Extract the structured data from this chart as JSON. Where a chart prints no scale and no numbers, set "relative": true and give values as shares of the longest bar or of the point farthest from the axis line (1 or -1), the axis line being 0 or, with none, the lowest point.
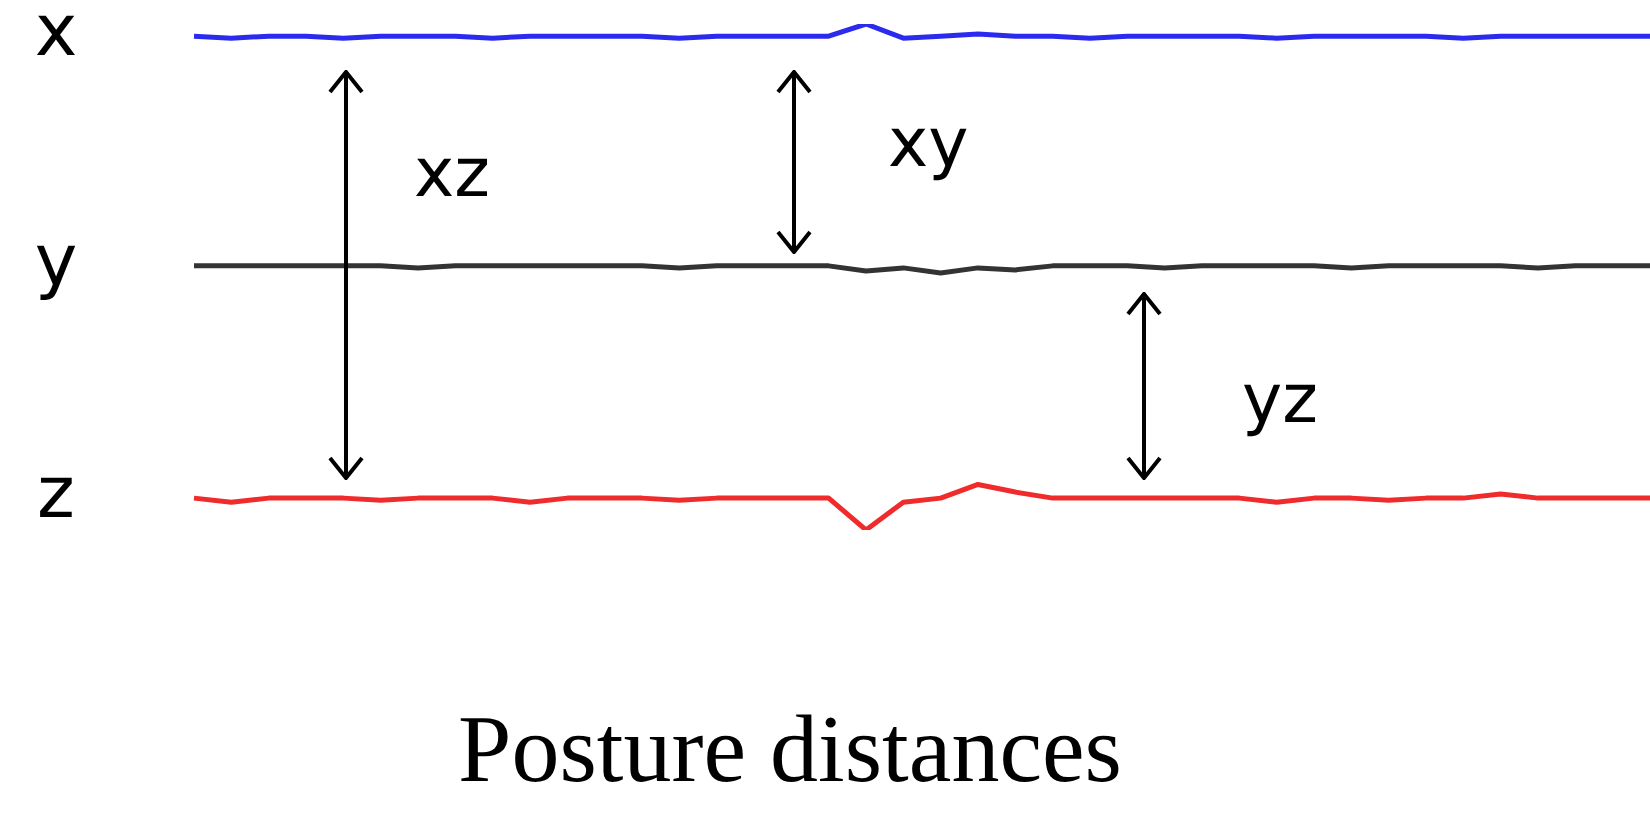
{
  "chart_data": {
    "type": "line",
    "title": "Posture distances",
    "relative": true,
    "legend": false,
    "marker": "none",
    "line_style": "solid",
    "categories": [
      null,
      null,
      null,
      null,
      null,
      null,
      null,
      null,
      null,
      null,
      null,
      null,
      null,
      null,
      null,
      null,
      null,
      null,
      null,
      null,
      null,
      null,
      null,
      null,
      null,
      null,
      null,
      null,
      null,
      null,
      null,
      null,
      null,
      null,
      null,
      null,
      null,
      null,
      null,
      null
    ],
    "series": [
      {
        "name": "x",
        "color": "#2b2bf0",
        "values": [
          0.976,
          0.972,
          0.976,
          0.976,
          0.972,
          0.976,
          0.976,
          0.976,
          0.972,
          0.976,
          0.976,
          0.976,
          0.976,
          0.972,
          0.976,
          0.976,
          0.976,
          0.976,
          1.0,
          0.972,
          0.976,
          0.98,
          0.976,
          0.976,
          0.972,
          0.976,
          0.976,
          0.976,
          0.976,
          0.972,
          0.976,
          0.976,
          0.976,
          0.976,
          0.972,
          0.976,
          0.976,
          0.976,
          0.976,
          0.976
        ]
      },
      {
        "name": "y",
        "color": "#333333",
        "values": [
          0.522,
          0.522,
          0.522,
          0.522,
          0.522,
          0.522,
          0.518,
          0.522,
          0.522,
          0.522,
          0.522,
          0.522,
          0.522,
          0.518,
          0.522,
          0.522,
          0.522,
          0.522,
          0.512,
          0.518,
          0.508,
          0.518,
          0.514,
          0.522,
          0.522,
          0.522,
          0.518,
          0.522,
          0.522,
          0.522,
          0.522,
          0.518,
          0.522,
          0.522,
          0.522,
          0.522,
          0.518,
          0.522,
          0.522,
          0.522
        ]
      },
      {
        "name": "z",
        "color": "#f02b2b",
        "values": [
          0.063,
          0.055,
          0.063,
          0.063,
          0.063,
          0.059,
          0.063,
          0.063,
          0.063,
          0.055,
          0.063,
          0.063,
          0.063,
          0.059,
          0.063,
          0.063,
          0.063,
          0.063,
          0.0,
          0.055,
          0.063,
          0.09,
          0.075,
          0.063,
          0.063,
          0.063,
          0.063,
          0.063,
          0.063,
          0.055,
          0.063,
          0.063,
          0.059,
          0.063,
          0.063,
          0.071,
          0.063,
          0.063,
          0.063,
          0.063
        ]
      }
    ],
    "annotations": [
      "xz",
      "xy",
      "yz"
    ]
  }
}
